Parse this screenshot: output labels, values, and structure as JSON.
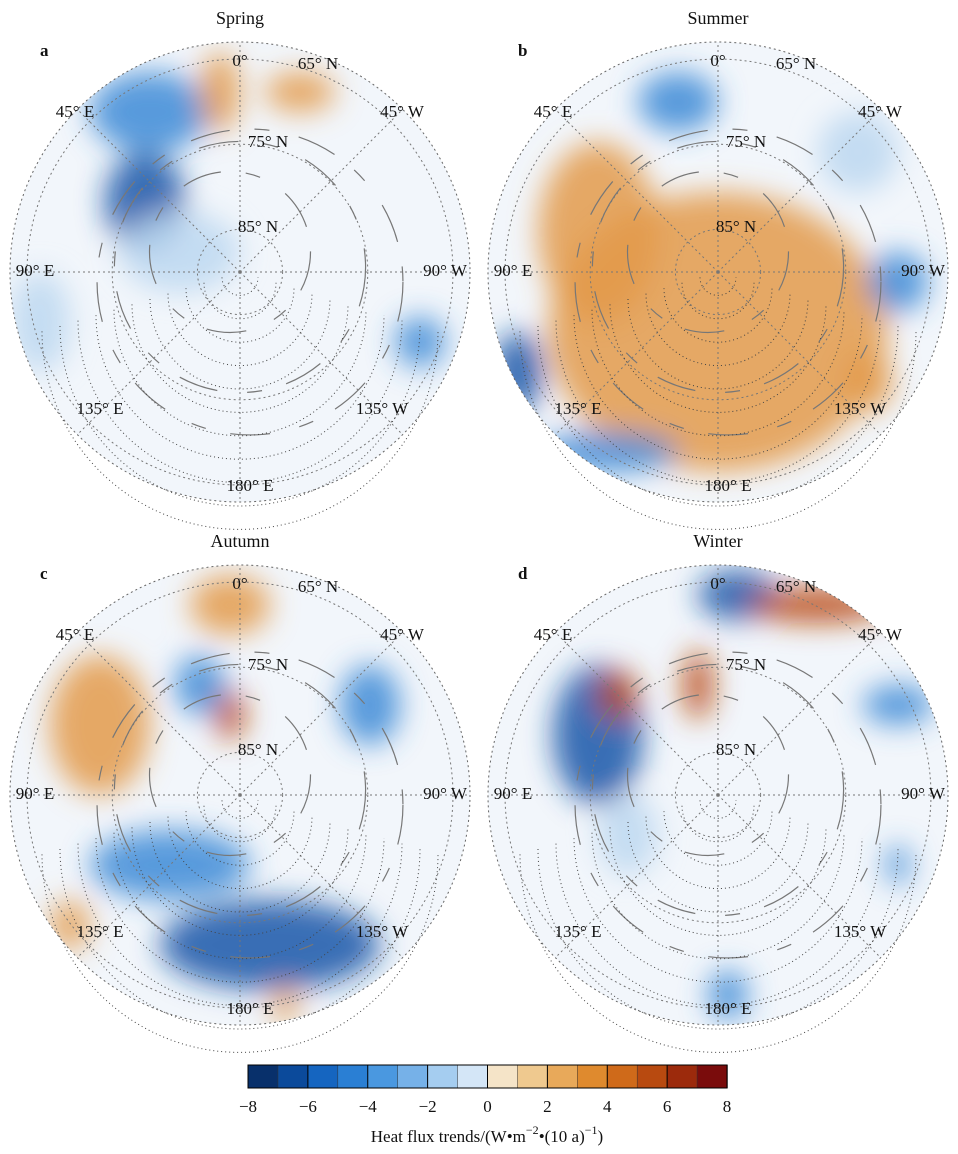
{
  "panels": [
    {
      "title": "Spring",
      "letter": "a"
    },
    {
      "title": "Summer",
      "letter": "b"
    },
    {
      "title": "Autumn",
      "letter": "c"
    },
    {
      "title": "Winter",
      "letter": "d"
    }
  ],
  "map_labels": [
    "0°",
    "65° N",
    "45° E",
    "45° W",
    "75° N",
    "85° N",
    "90° E",
    "90° W",
    "135° E",
    "135° W",
    "180° E"
  ],
  "colorbar": {
    "label": [
      "Heat flux trends/(W•m",
      "−2",
      "•(10 a)",
      "−1",
      ")"
    ],
    "xlim": [
      -8,
      8
    ],
    "xticks": [
      {
        "value": -8,
        "label": "−8"
      },
      {
        "value": -6,
        "label": "−6"
      },
      {
        "value": -4,
        "label": "−4"
      },
      {
        "value": -2,
        "label": "−2"
      },
      0,
      2,
      4,
      6,
      8
    ],
    "colors": [
      "#08306b",
      "#0b4a9b",
      "#1565c0",
      "#2a7fd4",
      "#4a98e0",
      "#76b1e8",
      "#a5cdf0",
      "#d4e6f7",
      "#f5e4c8",
      "#efc98f",
      "#e8a95a",
      "#df8a2e",
      "#cf6a1a",
      "#b84a10",
      "#9c2a0c",
      "#7a0c0c"
    ]
  }
}
